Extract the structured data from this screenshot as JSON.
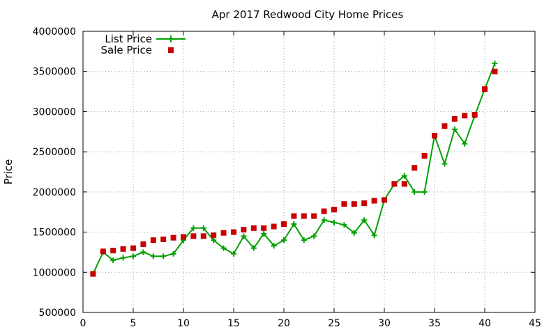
{
  "chart_data": {
    "type": "line",
    "title": "Apr 2017 Redwood City Home Prices",
    "xlabel": "",
    "ylabel": "Price",
    "xlim": [
      0,
      45
    ],
    "ylim": [
      500000,
      4000000
    ],
    "xticks": [
      0,
      5,
      10,
      15,
      20,
      25,
      30,
      35,
      40,
      45
    ],
    "yticks": [
      500000,
      1000000,
      1500000,
      2000000,
      2500000,
      3000000,
      3500000,
      4000000
    ],
    "grid": true,
    "legend_position": "top-left",
    "series": [
      {
        "name": "List Price",
        "style": "line-plus",
        "color": "#00a000",
        "x": [
          1,
          2,
          3,
          4,
          5,
          6,
          7,
          8,
          9,
          10,
          11,
          12,
          13,
          14,
          15,
          16,
          17,
          18,
          19,
          20,
          21,
          22,
          23,
          24,
          25,
          26,
          27,
          28,
          29,
          30,
          31,
          32,
          33,
          34,
          35,
          36,
          37,
          38,
          39,
          40,
          41
        ],
        "y": [
          980000,
          1250000,
          1150000,
          1180000,
          1200000,
          1250000,
          1200000,
          1200000,
          1230000,
          1400000,
          1550000,
          1550000,
          1400000,
          1300000,
          1230000,
          1450000,
          1300000,
          1480000,
          1330000,
          1400000,
          1600000,
          1400000,
          1450000,
          1650000,
          1620000,
          1590000,
          1490000,
          1650000,
          1460000,
          1900000,
          2100000,
          2200000,
          2000000,
          2000000,
          2700000,
          2350000,
          2780000,
          2600000,
          2950000,
          3280000,
          3600000
        ]
      },
      {
        "name": "Sale Price",
        "style": "square-points",
        "color": "#c80000",
        "x": [
          1,
          2,
          3,
          4,
          5,
          6,
          7,
          8,
          9,
          10,
          11,
          12,
          13,
          14,
          15,
          16,
          17,
          18,
          19,
          20,
          21,
          22,
          23,
          24,
          25,
          26,
          27,
          28,
          29,
          30,
          31,
          32,
          33,
          34,
          35,
          36,
          37,
          38,
          39,
          40,
          41
        ],
        "y": [
          980000,
          1260000,
          1270000,
          1290000,
          1300000,
          1350000,
          1400000,
          1410000,
          1430000,
          1440000,
          1450000,
          1450000,
          1460000,
          1490000,
          1500000,
          1530000,
          1550000,
          1550000,
          1570000,
          1600000,
          1700000,
          1700000,
          1700000,
          1760000,
          1780000,
          1850000,
          1850000,
          1860000,
          1890000,
          1900000,
          2100000,
          2100000,
          2300000,
          2450000,
          2700000,
          2820000,
          2910000,
          2950000,
          2960000,
          3280000,
          3500000
        ]
      }
    ]
  }
}
